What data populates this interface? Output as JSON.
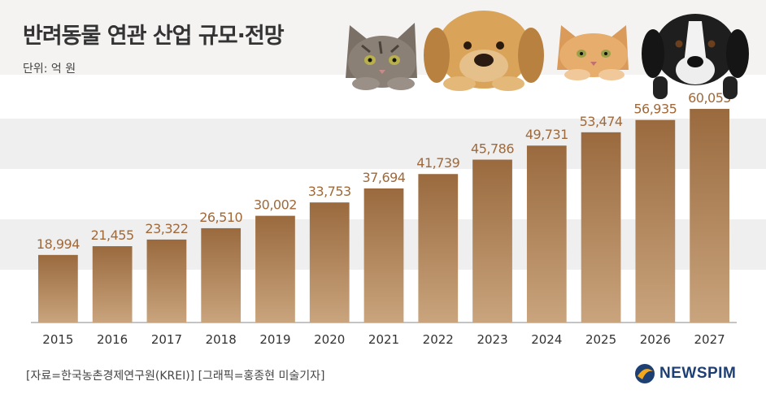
{
  "header": {
    "title": "반려동물 연관 산업 규모·전망",
    "unit": "단위: 억 원"
  },
  "footer": {
    "source": "[자료=한국농촌경제연구원(KREI)] [그래픽=홍종현 미술기자]",
    "logo": "NEWSPIM"
  },
  "colors": {
    "bar_top": "#9a6a3e",
    "bar_bottom": "#c9a47d",
    "label": "#a0693a",
    "band": "#efefef"
  },
  "icons": [
    "tabby-cat-icon",
    "golden-dog-icon",
    "orange-cat-icon",
    "black-dog-icon",
    "newspim-logo-icon"
  ],
  "chart_data": {
    "type": "bar",
    "title": "반려동물 연관 산업 규모·전망",
    "ylabel": "단위: 억 원",
    "xlabel": "",
    "categories": [
      "2015",
      "2016",
      "2017",
      "2018",
      "2019",
      "2020",
      "2021",
      "2022",
      "2023",
      "2024",
      "2025",
      "2026",
      "2027"
    ],
    "values": [
      18994,
      21455,
      23322,
      26510,
      30002,
      33753,
      37694,
      41739,
      45786,
      49731,
      53474,
      56935,
      60055
    ],
    "value_labels": [
      "18,994",
      "21,455",
      "23,322",
      "26,510",
      "30,002",
      "33,753",
      "37,694",
      "41,739",
      "45,786",
      "49,731",
      "53,474",
      "56,935",
      "60,055"
    ],
    "ylim": [
      0,
      66000
    ],
    "grid": false,
    "legend": "none"
  }
}
